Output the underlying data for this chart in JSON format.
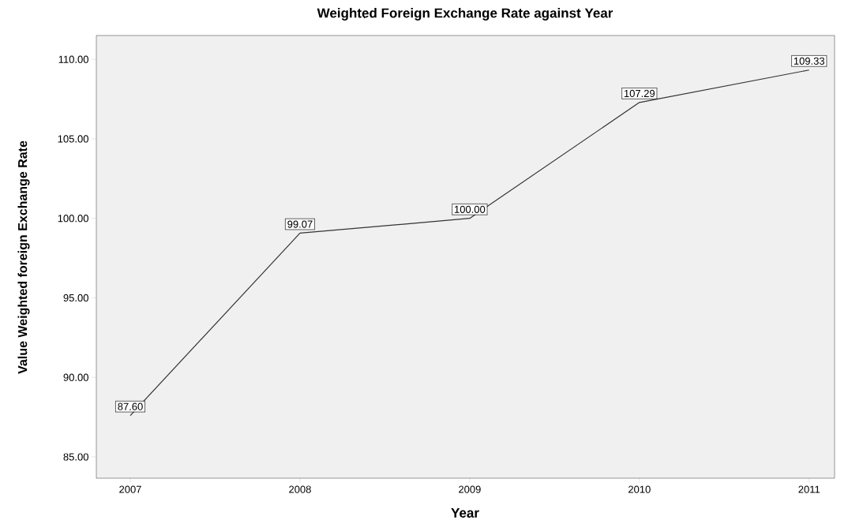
{
  "chart_data": {
    "type": "line",
    "title": "Weighted Foreign Exchange Rate against Year",
    "xlabel": "Year",
    "ylabel": "Value Weighted foreign Exchange Rate",
    "categories": [
      "2007",
      "2008",
      "2009",
      "2010",
      "2011"
    ],
    "series": [
      {
        "color": "#333333",
        "values": [
          87.6,
          99.07,
          100.0,
          107.29,
          109.33
        ],
        "value_labels": [
          "87.60",
          "99.07",
          "100.00",
          "107.29",
          "109.33"
        ]
      }
    ],
    "ylim": [
      83.66,
      111.5
    ],
    "yticks": [
      {
        "value": 85,
        "label": "85.00"
      },
      {
        "value": 90,
        "label": "90.00"
      },
      {
        "value": 95,
        "label": "95.00"
      },
      {
        "value": 100,
        "label": "100.00"
      },
      {
        "value": 105,
        "label": "105.00"
      },
      {
        "value": 110,
        "label": "110.00"
      }
    ],
    "grid": false,
    "legend": false,
    "marker": "none",
    "line_style": "solid"
  }
}
